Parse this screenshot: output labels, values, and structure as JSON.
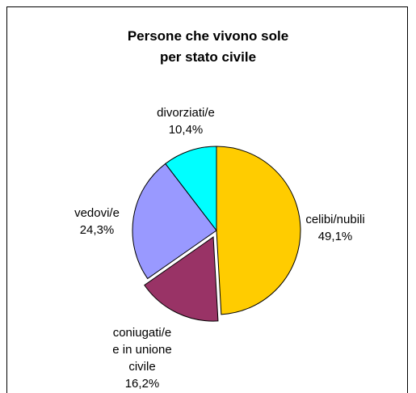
{
  "chart_data": {
    "type": "pie",
    "title_lines": [
      "Persone che vivono sole",
      "per stato civile"
    ],
    "slices": [
      {
        "label_lines": [
          "celibi/nubili",
          "49,1%"
        ],
        "value": 49.1,
        "color": "#FFCC00",
        "exploded": false
      },
      {
        "label_lines": [
          "coniugati/e",
          "e in unione",
          "civile",
          "16,2%"
        ],
        "value": 16.2,
        "color": "#993366",
        "exploded": true
      },
      {
        "label_lines": [
          "vedovi/e",
          "24,3%"
        ],
        "value": 24.3,
        "color": "#9999FF",
        "exploded": false
      },
      {
        "label_lines": [
          "divorziati/e",
          "10,4%"
        ],
        "value": 10.4,
        "color": "#00FFFF",
        "exploded": false
      }
    ]
  }
}
